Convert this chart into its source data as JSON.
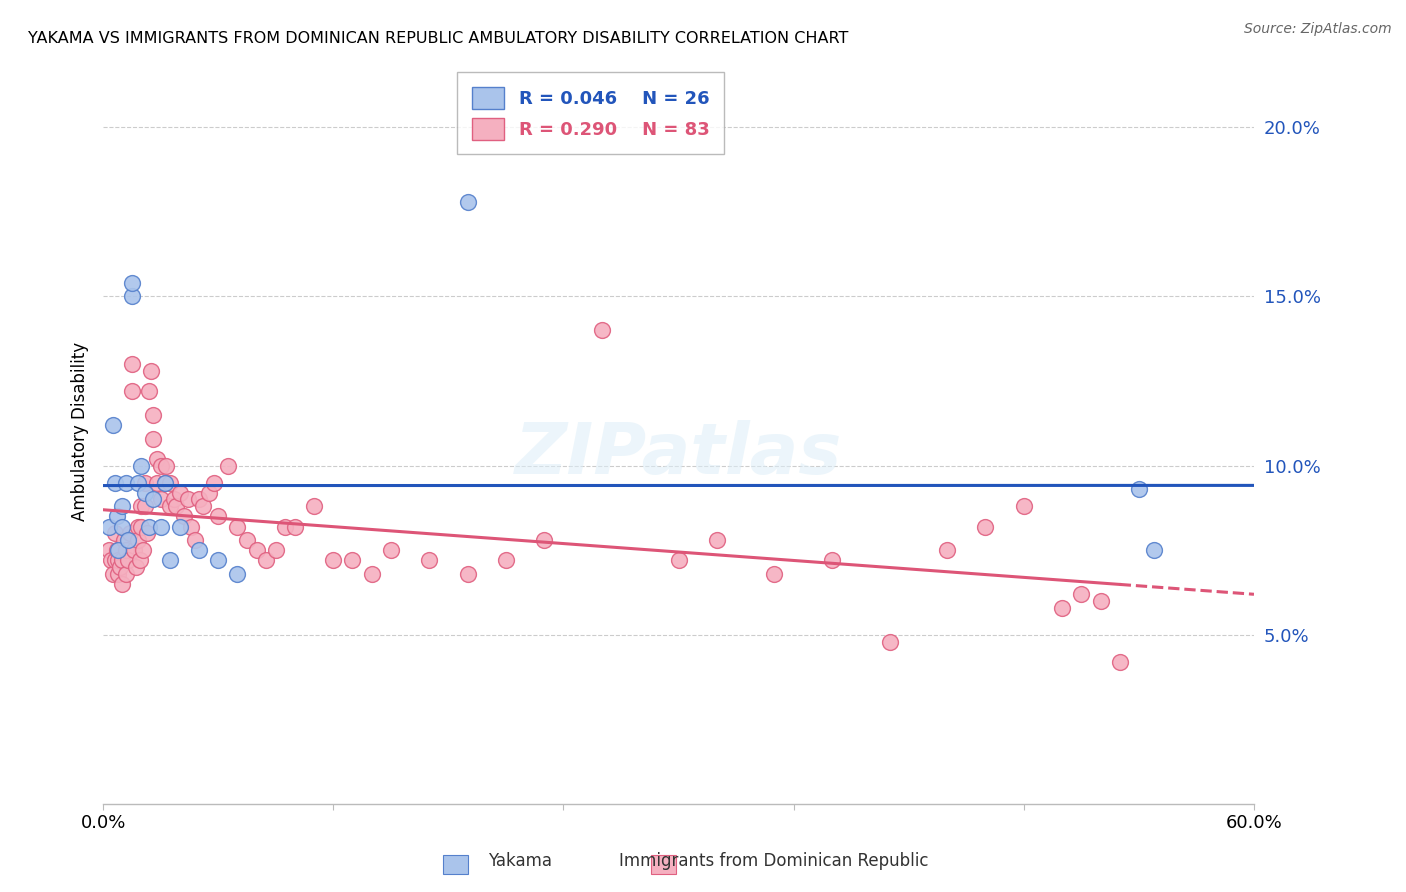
{
  "title": "YAKAMA VS IMMIGRANTS FROM DOMINICAN REPUBLIC AMBULATORY DISABILITY CORRELATION CHART",
  "source": "Source: ZipAtlas.com",
  "ylabel": "Ambulatory Disability",
  "xlim": [
    0.0,
    0.6
  ],
  "ylim": [
    0.0,
    0.22
  ],
  "yticks": [
    0.05,
    0.1,
    0.15,
    0.2
  ],
  "ytick_labels": [
    "5.0%",
    "10.0%",
    "15.0%",
    "20.0%"
  ],
  "xticks": [
    0.0,
    0.12,
    0.24,
    0.36,
    0.48,
    0.6
  ],
  "xtick_labels": [
    "0.0%",
    "",
    "",
    "",
    "",
    "60.0%"
  ],
  "blue_R": 0.046,
  "blue_N": 26,
  "pink_R": 0.29,
  "pink_N": 83,
  "blue_color": "#aac4eb",
  "pink_color": "#f5b0c0",
  "blue_edge_color": "#5580cc",
  "pink_edge_color": "#e06080",
  "blue_line_color": "#2255bb",
  "pink_line_color": "#dd5577",
  "watermark": "ZIPatlas",
  "blue_points_x": [
    0.003,
    0.005,
    0.006,
    0.007,
    0.008,
    0.01,
    0.01,
    0.012,
    0.013,
    0.015,
    0.015,
    0.018,
    0.02,
    0.022,
    0.024,
    0.026,
    0.03,
    0.032,
    0.035,
    0.04,
    0.05,
    0.06,
    0.07,
    0.19,
    0.54,
    0.548
  ],
  "blue_points_y": [
    0.082,
    0.112,
    0.095,
    0.085,
    0.075,
    0.088,
    0.082,
    0.095,
    0.078,
    0.15,
    0.154,
    0.095,
    0.1,
    0.092,
    0.082,
    0.09,
    0.082,
    0.095,
    0.072,
    0.082,
    0.075,
    0.072,
    0.068,
    0.178,
    0.093,
    0.075
  ],
  "pink_points_x": [
    0.003,
    0.004,
    0.005,
    0.006,
    0.006,
    0.007,
    0.008,
    0.008,
    0.009,
    0.01,
    0.01,
    0.011,
    0.012,
    0.012,
    0.013,
    0.014,
    0.015,
    0.015,
    0.016,
    0.017,
    0.018,
    0.018,
    0.019,
    0.02,
    0.02,
    0.021,
    0.022,
    0.022,
    0.023,
    0.024,
    0.025,
    0.026,
    0.026,
    0.028,
    0.028,
    0.03,
    0.03,
    0.032,
    0.033,
    0.035,
    0.035,
    0.037,
    0.038,
    0.04,
    0.042,
    0.044,
    0.046,
    0.048,
    0.05,
    0.052,
    0.055,
    0.058,
    0.06,
    0.065,
    0.07,
    0.075,
    0.08,
    0.085,
    0.09,
    0.095,
    0.1,
    0.11,
    0.12,
    0.13,
    0.14,
    0.15,
    0.17,
    0.19,
    0.21,
    0.23,
    0.26,
    0.3,
    0.32,
    0.35,
    0.38,
    0.41,
    0.44,
    0.46,
    0.48,
    0.5,
    0.51,
    0.52,
    0.53
  ],
  "pink_points_y": [
    0.075,
    0.072,
    0.068,
    0.072,
    0.08,
    0.075,
    0.068,
    0.072,
    0.07,
    0.065,
    0.072,
    0.078,
    0.075,
    0.068,
    0.072,
    0.08,
    0.122,
    0.13,
    0.075,
    0.07,
    0.082,
    0.078,
    0.072,
    0.088,
    0.082,
    0.075,
    0.095,
    0.088,
    0.08,
    0.122,
    0.128,
    0.115,
    0.108,
    0.095,
    0.102,
    0.1,
    0.09,
    0.095,
    0.1,
    0.088,
    0.095,
    0.09,
    0.088,
    0.092,
    0.085,
    0.09,
    0.082,
    0.078,
    0.09,
    0.088,
    0.092,
    0.095,
    0.085,
    0.1,
    0.082,
    0.078,
    0.075,
    0.072,
    0.075,
    0.082,
    0.082,
    0.088,
    0.072,
    0.072,
    0.068,
    0.075,
    0.072,
    0.068,
    0.072,
    0.078,
    0.14,
    0.072,
    0.078,
    0.068,
    0.072,
    0.048,
    0.075,
    0.082,
    0.088,
    0.058,
    0.062,
    0.06,
    0.042
  ]
}
